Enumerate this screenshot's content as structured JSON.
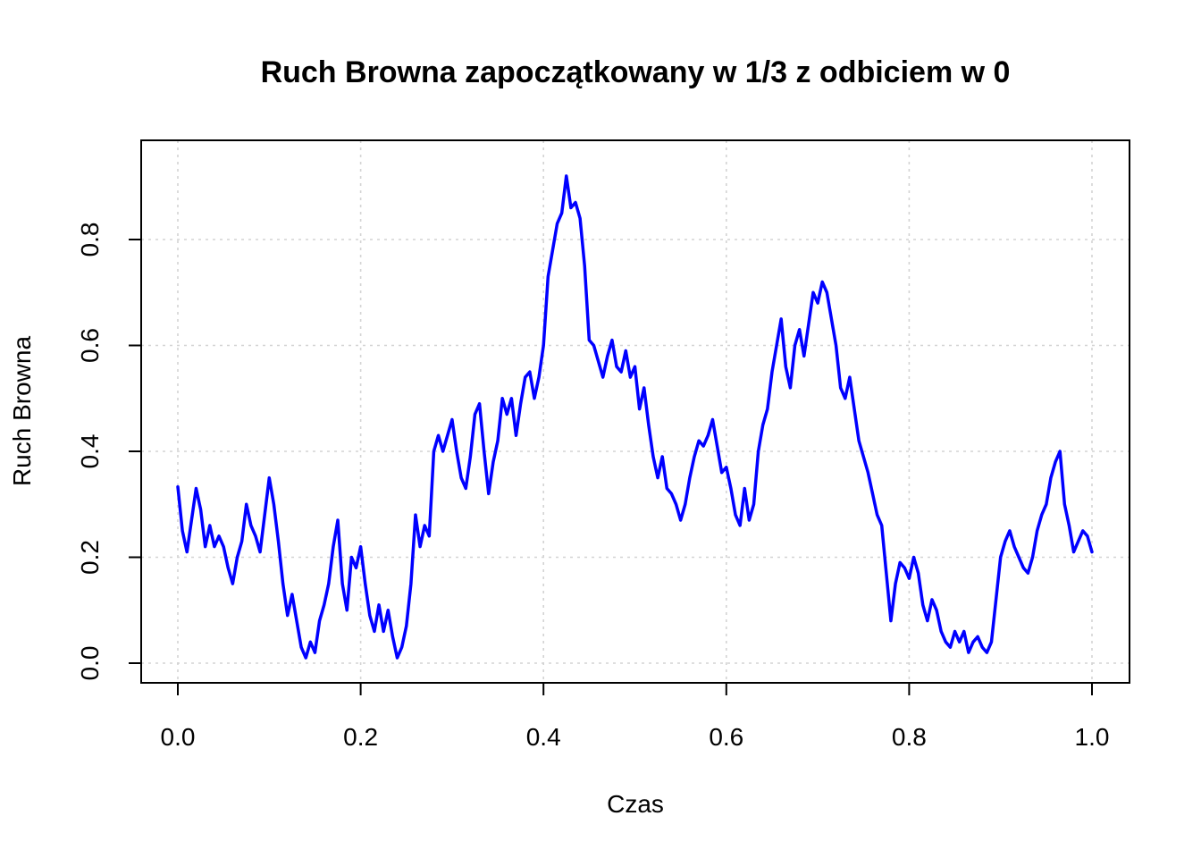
{
  "chart_data": {
    "type": "line",
    "title": "Ruch Browna zapoczątkowany w 1/3 z odbiciem w 0",
    "xlabel": "Czas",
    "ylabel": "Ruch Browna",
    "xlim": [
      0,
      1
    ],
    "ylim": [
      0,
      0.95
    ],
    "x_ticks": [
      0.0,
      0.2,
      0.4,
      0.6,
      0.8,
      1.0
    ],
    "x_tick_labels": [
      "0.0",
      "0.2",
      "0.4",
      "0.6",
      "0.8",
      "1.0"
    ],
    "y_ticks": [
      0.0,
      0.2,
      0.4,
      0.6,
      0.8
    ],
    "y_tick_labels": [
      "0.0",
      "0.2",
      "0.4",
      "0.6",
      "0.8"
    ],
    "grid": true,
    "line_color": "#0000ff",
    "series": [
      {
        "x": [
          0.0,
          0.005,
          0.01,
          0.015,
          0.02,
          0.025,
          0.03,
          0.035,
          0.04,
          0.045,
          0.05,
          0.055,
          0.06,
          0.065,
          0.07,
          0.075,
          0.08,
          0.085,
          0.09,
          0.095,
          0.1,
          0.105,
          0.11,
          0.115,
          0.12,
          0.125,
          0.13,
          0.135,
          0.14,
          0.145,
          0.15,
          0.155,
          0.16,
          0.165,
          0.17,
          0.175,
          0.18,
          0.185,
          0.19,
          0.195,
          0.2,
          0.205,
          0.21,
          0.215,
          0.22,
          0.225,
          0.23,
          0.235,
          0.24,
          0.245,
          0.25,
          0.255,
          0.26,
          0.265,
          0.27,
          0.275,
          0.28,
          0.285,
          0.29,
          0.295,
          0.3,
          0.305,
          0.31,
          0.315,
          0.32,
          0.325,
          0.33,
          0.335,
          0.34,
          0.345,
          0.35,
          0.355,
          0.36,
          0.365,
          0.37,
          0.375,
          0.38,
          0.385,
          0.39,
          0.395,
          0.4,
          0.405,
          0.41,
          0.415,
          0.42,
          0.425,
          0.43,
          0.435,
          0.44,
          0.445,
          0.45,
          0.455,
          0.46,
          0.465,
          0.47,
          0.475,
          0.48,
          0.485,
          0.49,
          0.495,
          0.5,
          0.505,
          0.51,
          0.515,
          0.52,
          0.525,
          0.53,
          0.535,
          0.54,
          0.545,
          0.55,
          0.555,
          0.56,
          0.565,
          0.57,
          0.575,
          0.58,
          0.585,
          0.59,
          0.595,
          0.6,
          0.605,
          0.61,
          0.615,
          0.62,
          0.625,
          0.63,
          0.635,
          0.64,
          0.645,
          0.65,
          0.655,
          0.66,
          0.665,
          0.67,
          0.675,
          0.68,
          0.685,
          0.69,
          0.695,
          0.7,
          0.705,
          0.71,
          0.715,
          0.72,
          0.725,
          0.73,
          0.735,
          0.74,
          0.745,
          0.75,
          0.755,
          0.76,
          0.765,
          0.77,
          0.775,
          0.78,
          0.785,
          0.79,
          0.795,
          0.8,
          0.805,
          0.81,
          0.815,
          0.82,
          0.825,
          0.83,
          0.835,
          0.84,
          0.845,
          0.85,
          0.855,
          0.86,
          0.865,
          0.87,
          0.875,
          0.88,
          0.885,
          0.89,
          0.895,
          0.9,
          0.905,
          0.91,
          0.915,
          0.92,
          0.925,
          0.93,
          0.935,
          0.94,
          0.945,
          0.95,
          0.955,
          0.96,
          0.965,
          0.97,
          0.975,
          0.98,
          0.985,
          0.99,
          0.995,
          1.0
        ],
        "y": [
          0.333,
          0.25,
          0.21,
          0.27,
          0.33,
          0.29,
          0.22,
          0.26,
          0.22,
          0.24,
          0.22,
          0.18,
          0.15,
          0.2,
          0.23,
          0.3,
          0.26,
          0.24,
          0.21,
          0.28,
          0.35,
          0.3,
          0.23,
          0.15,
          0.09,
          0.13,
          0.08,
          0.03,
          0.01,
          0.04,
          0.02,
          0.08,
          0.11,
          0.15,
          0.22,
          0.27,
          0.15,
          0.1,
          0.2,
          0.18,
          0.22,
          0.15,
          0.09,
          0.06,
          0.11,
          0.06,
          0.1,
          0.05,
          0.01,
          0.03,
          0.07,
          0.15,
          0.28,
          0.22,
          0.26,
          0.24,
          0.4,
          0.43,
          0.4,
          0.43,
          0.46,
          0.4,
          0.35,
          0.33,
          0.39,
          0.47,
          0.49,
          0.4,
          0.32,
          0.38,
          0.42,
          0.5,
          0.47,
          0.5,
          0.43,
          0.49,
          0.54,
          0.55,
          0.5,
          0.54,
          0.6,
          0.73,
          0.78,
          0.83,
          0.85,
          0.92,
          0.86,
          0.87,
          0.84,
          0.75,
          0.61,
          0.6,
          0.57,
          0.54,
          0.58,
          0.61,
          0.56,
          0.55,
          0.59,
          0.54,
          0.56,
          0.48,
          0.52,
          0.45,
          0.39,
          0.35,
          0.39,
          0.33,
          0.32,
          0.3,
          0.27,
          0.3,
          0.35,
          0.39,
          0.42,
          0.41,
          0.43,
          0.46,
          0.41,
          0.36,
          0.37,
          0.33,
          0.28,
          0.26,
          0.33,
          0.27,
          0.3,
          0.4,
          0.45,
          0.48,
          0.55,
          0.6,
          0.65,
          0.56,
          0.52,
          0.6,
          0.63,
          0.58,
          0.64,
          0.7,
          0.68,
          0.72,
          0.7,
          0.65,
          0.6,
          0.52,
          0.5,
          0.54,
          0.48,
          0.42,
          0.39,
          0.36,
          0.32,
          0.28,
          0.26,
          0.17,
          0.08,
          0.15,
          0.19,
          0.18,
          0.16,
          0.2,
          0.17,
          0.11,
          0.08,
          0.12,
          0.1,
          0.06,
          0.04,
          0.03,
          0.06,
          0.04,
          0.06,
          0.02,
          0.04,
          0.05,
          0.03,
          0.02,
          0.04,
          0.12,
          0.2,
          0.23,
          0.25,
          0.22,
          0.2,
          0.18,
          0.17,
          0.2,
          0.25,
          0.28,
          0.3,
          0.35,
          0.38,
          0.4,
          0.3,
          0.26,
          0.21,
          0.23,
          0.25,
          0.24,
          0.21
        ]
      }
    ]
  }
}
